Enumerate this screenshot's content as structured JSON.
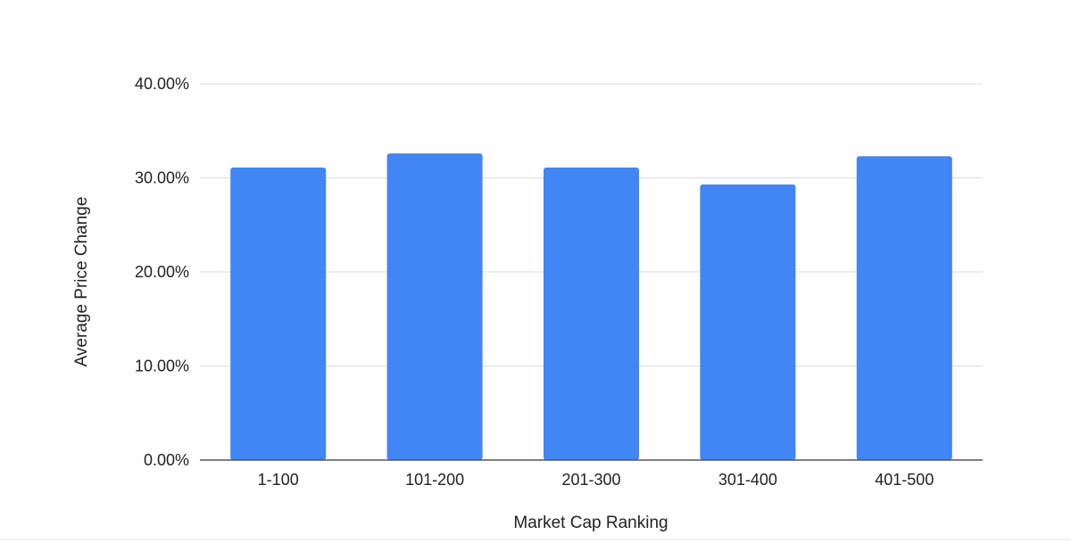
{
  "chart_data": {
    "type": "bar",
    "title": "",
    "xlabel": "Market Cap Ranking",
    "ylabel": "Average Price Change",
    "categories": [
      "1-100",
      "101-200",
      "201-300",
      "301-400",
      "401-500"
    ],
    "values": [
      31.1,
      32.6,
      31.1,
      29.3,
      32.3
    ],
    "ylim": [
      0,
      40
    ],
    "yticks": [
      0,
      10,
      20,
      30,
      40
    ],
    "ytick_labels": [
      "0.00%",
      "10.00%",
      "20.00%",
      "30.00%",
      "40.00%"
    ],
    "grid": true,
    "legend": "none",
    "bar_color": "#4285f4",
    "grid_color": "#d9d9d9",
    "axis_color": "#555555"
  }
}
